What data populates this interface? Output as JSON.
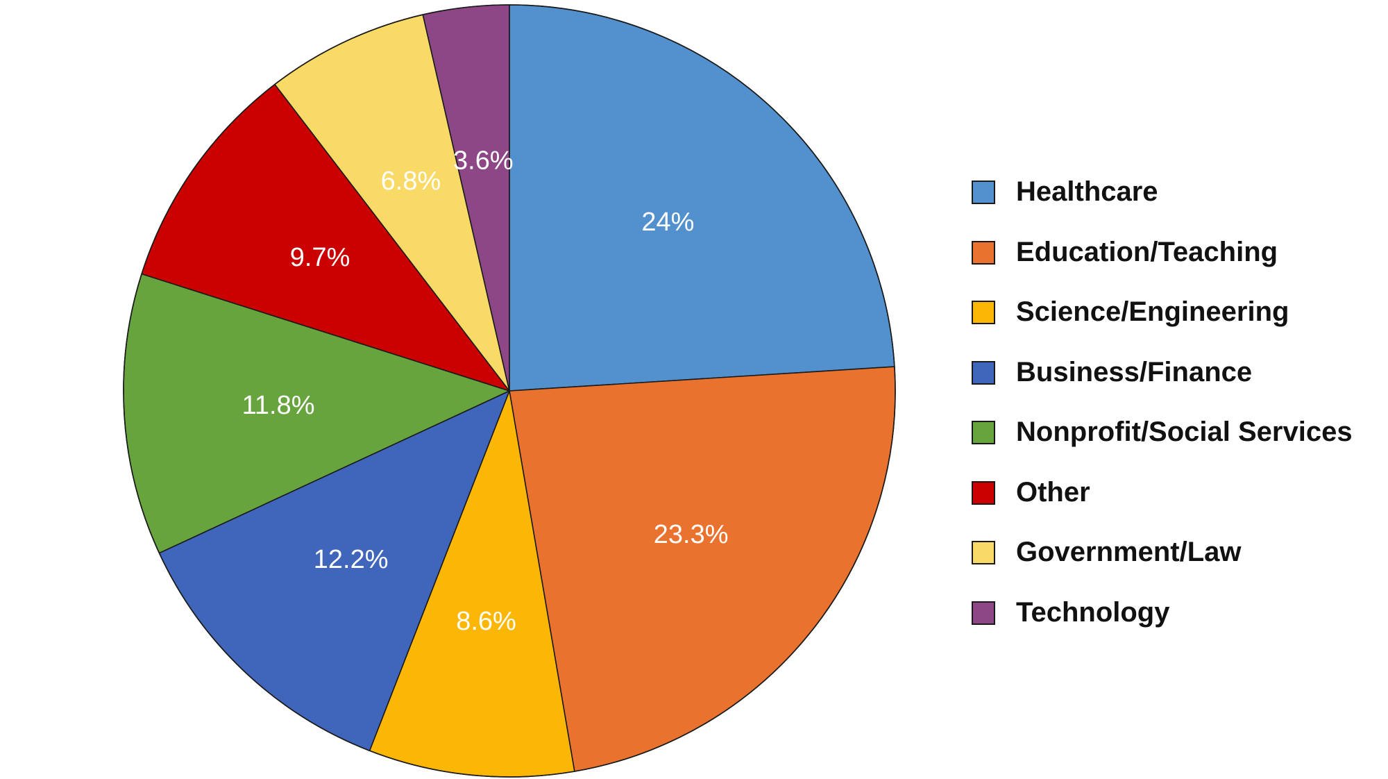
{
  "chart_data": {
    "type": "pie",
    "start_angle_deg": 0,
    "direction": "clockwise",
    "legend_position": "right",
    "slices": [
      {
        "name": "Healthcare",
        "value": 24,
        "label": "24%",
        "color": "#5291ce"
      },
      {
        "name": "Education/Teaching",
        "value": 23.3,
        "label": "23.3%",
        "color": "#ea722f"
      },
      {
        "name": "Science/Engineering",
        "value": 8.6,
        "label": "8.6%",
        "color": "#fcb605"
      },
      {
        "name": "Business/Finance",
        "value": 12.2,
        "label": "12.2%",
        "color": "#3f66bb"
      },
      {
        "name": "Nonprofit/Social Services",
        "value": 11.8,
        "label": "11.8%",
        "color": "#67a43e"
      },
      {
        "name": "Other",
        "value": 9.7,
        "label": "9.7%",
        "color": "#cb0001"
      },
      {
        "name": "Government/Law",
        "value": 6.8,
        "label": "6.8%",
        "color": "#f9da66"
      },
      {
        "name": "Technology",
        "value": 3.6,
        "label": "3.6%",
        "color": "#8d4686"
      }
    ]
  }
}
